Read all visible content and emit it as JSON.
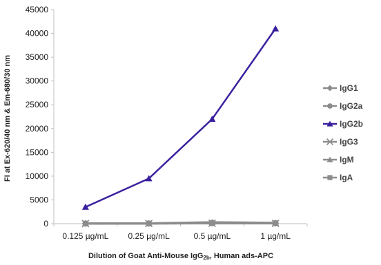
{
  "chart_data": {
    "type": "line",
    "categories": [
      "0.125 µg/mL",
      "0.25 µg/mL",
      "0.5 µg/mL",
      "1 µg/mL"
    ],
    "xlabel_main": "Dilution of Goat Anti-Mouse IgG",
    "xlabel_sub": "2b",
    "xlabel_tail": ", Human ads-APC",
    "ylabel": "FI at Ex-620/40 nm & Em-680/30 nm",
    "ylim": [
      0,
      45000
    ],
    "yticks": [
      0,
      5000,
      10000,
      15000,
      20000,
      25000,
      30000,
      35000,
      40000,
      45000
    ],
    "ytick_labels": [
      "0",
      "5000",
      "10000",
      "15000",
      "20000",
      "25000",
      "30000",
      "35000",
      "40000",
      "45000"
    ],
    "grid": false,
    "legend_position": "right",
    "series": [
      {
        "name": "IgG1",
        "values": [
          50,
          60,
          120,
          100
        ],
        "color": "#8c8c8c",
        "marker": "diamond"
      },
      {
        "name": "IgG2a",
        "values": [
          40,
          50,
          100,
          80
        ],
        "color": "#8c8c8c",
        "marker": "circle"
      },
      {
        "name": "IgG2b",
        "values": [
          3500,
          9500,
          22000,
          41000
        ],
        "color": "#3a1f9e",
        "marker": "triangle"
      },
      {
        "name": "IgG3",
        "values": [
          30,
          40,
          90,
          70
        ],
        "color": "#8c8c8c",
        "marker": "x"
      },
      {
        "name": "IgM",
        "values": [
          60,
          80,
          300,
          200
        ],
        "color": "#8c8c8c",
        "marker": "triangle"
      },
      {
        "name": "IgA",
        "values": [
          40,
          50,
          150,
          120
        ],
        "color": "#8c8c8c",
        "marker": "square"
      }
    ]
  }
}
